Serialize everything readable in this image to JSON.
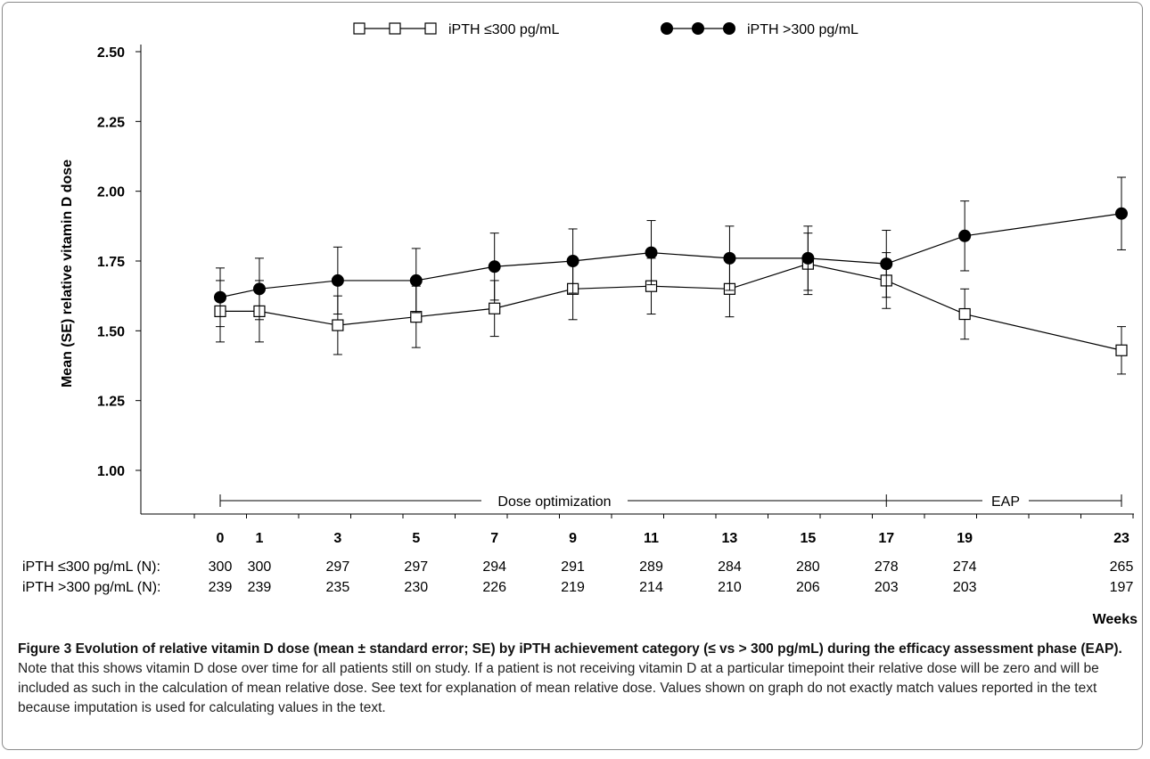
{
  "chart_data": {
    "type": "line",
    "x": [
      0,
      1,
      3,
      5,
      7,
      9,
      11,
      13,
      15,
      17,
      19,
      23
    ],
    "x_tick_labels": [
      "0",
      "1",
      "3",
      "5",
      "7",
      "9",
      "11",
      "13",
      "15",
      "17",
      "19",
      "23"
    ],
    "xlabel": "Weeks",
    "ylabel": "Mean (SE) relative vitamin D dose",
    "ylim": [
      0.75,
      2.5
    ],
    "y_ticks": [
      "1.00",
      "1.25",
      "1.50",
      "1.75",
      "2.00",
      "2.25",
      "2.50"
    ],
    "series": [
      {
        "name": "iPTH ≤300 pg/mL",
        "marker": "open-square",
        "color": "#000000",
        "values": [
          1.57,
          1.57,
          1.52,
          1.55,
          1.58,
          1.65,
          1.66,
          1.65,
          1.74,
          1.68,
          1.56,
          1.43
        ],
        "se": [
          0.11,
          0.11,
          0.105,
          0.11,
          0.1,
          0.11,
          0.1,
          0.1,
          0.11,
          0.1,
          0.09,
          0.085
        ]
      },
      {
        "name": "iPTH >300 pg/mL",
        "marker": "filled-circle",
        "color": "#000000",
        "values": [
          1.62,
          1.65,
          1.68,
          1.68,
          1.73,
          1.75,
          1.78,
          1.76,
          1.76,
          1.74,
          1.84,
          1.92
        ],
        "se": [
          0.105,
          0.11,
          0.12,
          0.115,
          0.12,
          0.115,
          0.115,
          0.115,
          0.115,
          0.12,
          0.125,
          0.13
        ]
      }
    ],
    "phases": [
      {
        "label": "Dose optimization",
        "start": 0,
        "end": 17
      },
      {
        "label": "EAP",
        "start": 17,
        "end": 23
      }
    ],
    "counts": [
      {
        "label": "iPTH ≤300 pg/mL (N):",
        "values": [
          "300",
          "300",
          "297",
          "297",
          "294",
          "291",
          "289",
          "284",
          "280",
          "278",
          "274",
          "265"
        ]
      },
      {
        "label": "iPTH >300 pg/mL (N):",
        "values": [
          "239",
          "239",
          "235",
          "230",
          "226",
          "219",
          "214",
          "210",
          "206",
          "203",
          "203",
          "197"
        ]
      }
    ],
    "legend_position": "top"
  },
  "caption": {
    "title": "Figure 3 Evolution of relative vitamin D dose (mean ± standard error; SE) by iPTH achievement category (≤ vs > 300 pg/mL) during the efficacy assessment phase (EAP).",
    "body": "Note that this shows vitamin D dose over time for all patients still on study. If a patient is not receiving vitamin D at a particular timepoint their relative dose will be zero and will be included as such in the calculation of mean relative dose. See text for explanation of mean relative dose. Values shown on graph do not exactly match values reported in the text because imputation is used for calculating values in the text."
  }
}
